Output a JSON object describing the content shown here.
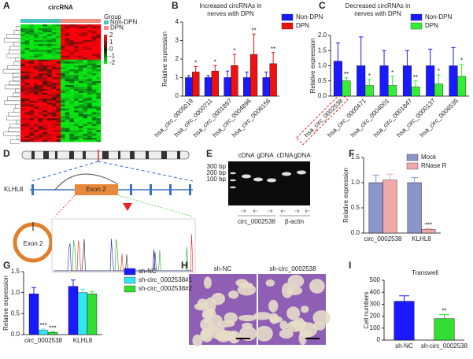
{
  "chart_data": [
    {
      "type": "heatmap",
      "label": "A",
      "title": "circRNA",
      "legend_title": "Group",
      "series": [
        {
          "name": "Non-DPN",
          "color": "#4dc3c0"
        },
        {
          "name": "DPN",
          "color": "#f28b82"
        }
      ],
      "colorbar_ticks": [
        2,
        1,
        0,
        -1,
        -2
      ]
    },
    {
      "type": "bar",
      "label": "B",
      "title": [
        "Increased circRNAs in",
        "nerves with DPN"
      ],
      "ylabel": "Relative expression",
      "categories": [
        "hsa_circ_0005019",
        "hsa_circ_0000711",
        "hsa_circ_0001897",
        "hsa_circ_0004896",
        "hsa_circ_0006156"
      ],
      "series": [
        {
          "name": "Non-DPN",
          "color": "#1a1aff",
          "values": [
            1.0,
            1.0,
            1.0,
            1.0,
            1.0
          ],
          "errors": [
            0.1,
            0.1,
            0.35,
            0.3,
            0.3
          ]
        },
        {
          "name": "DPN",
          "color": "#ee1111",
          "values": [
            1.3,
            1.35,
            1.65,
            2.25,
            1.75
          ],
          "errors": [
            0.3,
            0.3,
            0.6,
            1.1,
            0.6
          ]
        }
      ],
      "annotations": [
        {
          "text": "*",
          "series": 1,
          "index": 0
        },
        {
          "text": "*",
          "series": 1,
          "index": 1
        },
        {
          "text": "*",
          "series": 1,
          "index": 2
        },
        {
          "text": "**",
          "series": 1,
          "index": 3
        },
        {
          "text": "**",
          "series": 1,
          "index": 4
        }
      ],
      "ylim": [
        0,
        4
      ],
      "yticks": [
        0,
        1,
        2,
        3,
        4
      ]
    },
    {
      "type": "bar",
      "label": "C",
      "title": [
        "Decreased circRNAs in",
        "nerves with DPN"
      ],
      "ylabel": "Relative expression",
      "categories": [
        "hsa_circ_0002538",
        "hsa_circ_0000471",
        "hsa_circ_0004001",
        "hsa_circ_0001847",
        "hsa_circ_0000137",
        "hsa_circ_0006535"
      ],
      "series": [
        {
          "name": "Non-DPN",
          "color": "#1a1aff",
          "values": [
            1.15,
            1.0,
            1.0,
            1.0,
            1.0,
            1.0
          ],
          "errors": [
            0.6,
            0.95,
            0.5,
            0.5,
            0.55,
            0.6
          ]
        },
        {
          "name": "DPN",
          "color": "#33ee33",
          "values": [
            0.5,
            0.35,
            0.35,
            0.3,
            0.4,
            0.65
          ],
          "errors": [
            0.1,
            0.2,
            0.3,
            0.2,
            0.3,
            0.4
          ]
        }
      ],
      "annotations": [
        {
          "text": "**",
          "series": 1,
          "index": 0
        },
        {
          "text": "*",
          "series": 1,
          "index": 1
        },
        {
          "text": "*",
          "series": 1,
          "index": 2
        },
        {
          "text": "**",
          "series": 1,
          "index": 3
        },
        {
          "text": "*",
          "series": 1,
          "index": 4
        },
        {
          "text": "*",
          "series": 1,
          "index": 5
        }
      ],
      "ylim": [
        0,
        2.0
      ],
      "yticks": [
        {
          "value": 0,
          "label": "0.0"
        },
        {
          "value": 0.5,
          "label": "0.5"
        },
        {
          "value": 1.0,
          "label": "1.0"
        },
        {
          "value": 1.5,
          "label": "1.5"
        },
        {
          "value": 2.0,
          "label": "2.0"
        }
      ]
    },
    {
      "type": "bar",
      "label": "F",
      "ylabel": "Relative expression",
      "categories": [
        "circ_0002538",
        "KLHL8"
      ],
      "series": [
        {
          "name": "Mock",
          "color": "#8a95c9",
          "values": [
            1.0,
            1.0
          ],
          "errors": [
            0.15,
            0.1
          ]
        },
        {
          "name": "RNase R",
          "color": "#f0a8a8",
          "values": [
            1.05,
            0.07
          ],
          "errors": [
            0.12,
            0.02
          ]
        }
      ],
      "annotations": [
        {
          "text": "***",
          "series": 1,
          "index": 1
        }
      ],
      "ylim": [
        0,
        1.5
      ],
      "yticks": [
        {
          "value": 0,
          "label": "0.0"
        },
        {
          "value": 0.5,
          "label": "0.5"
        },
        {
          "value": 1.0,
          "label": "1.0"
        },
        {
          "value": 1.5,
          "label": "1.5"
        }
      ]
    },
    {
      "type": "bar",
      "label": "G",
      "ylabel": "Relative expression",
      "categories": [
        "circ_0002538",
        "KLHL8"
      ],
      "series": [
        {
          "name": "sh-NC",
          "color": "#1a1aff",
          "values": [
            0.97,
            1.15
          ],
          "errors": [
            0.15,
            0.15
          ]
        },
        {
          "name": "sh-circ_0002538#1",
          "color": "#33e5f0",
          "values": [
            0.1,
            1.0
          ],
          "errors": [
            0.03,
            0.08
          ]
        },
        {
          "name": "sh-circ_0002538#2",
          "color": "#33dd33",
          "values": [
            0.05,
            0.97
          ],
          "errors": [
            0.02,
            0.06
          ]
        }
      ],
      "annotations": [
        {
          "text": "***",
          "series": 1,
          "index": 0
        },
        {
          "text": "***",
          "series": 2,
          "index": 0
        }
      ],
      "ylim": [
        0,
        1.5
      ],
      "yticks": [
        {
          "value": 0,
          "label": "0.0"
        },
        {
          "value": 0.5,
          "label": "0.5"
        },
        {
          "value": 1.0,
          "label": "1.0"
        },
        {
          "value": 1.5,
          "label": "1.5"
        }
      ]
    },
    {
      "type": "bar",
      "label": "I",
      "title": [
        "Transwell"
      ],
      "ylabel": "Cell numbers",
      "categories": [
        "sh-NC",
        "sh-circ_0002538"
      ],
      "values": [
        325,
        180
      ],
      "errors": [
        45,
        35
      ],
      "colors": [
        "#1a1aff",
        "#33dd33"
      ],
      "annotations": [
        {
          "text": "**",
          "index": 1
        }
      ],
      "ylim": [
        0,
        500
      ],
      "yticks": [
        0,
        100,
        200,
        300,
        400,
        500
      ]
    }
  ],
  "panel_d": {
    "label": "D",
    "gene": "KLHL8",
    "exon": "Exon 2",
    "circle": "Exon 2"
  },
  "panel_e": {
    "label": "E",
    "lanes": [
      "cDNA",
      "gDNA",
      "cDNA",
      "gDNA"
    ],
    "ladder": [
      "300 bp",
      "200 bp",
      "100 bp"
    ],
    "groups": [
      "circ_0002538",
      "β-actin"
    ]
  },
  "panel_h": {
    "label": "H",
    "images": [
      "sh-NC",
      "sh-circ_0002538"
    ]
  }
}
